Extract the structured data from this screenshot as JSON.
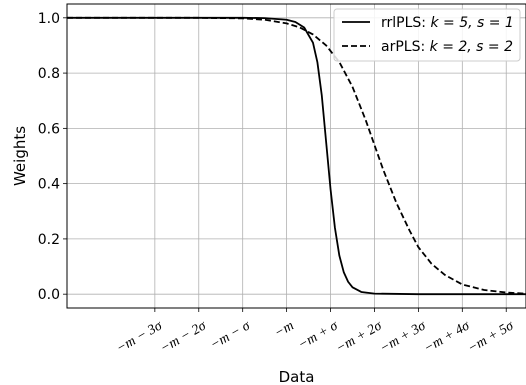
{
  "chart_data": {
    "type": "line",
    "xlabel": "Data",
    "ylabel": "Weights",
    "xlim": [
      -5,
      5.45
    ],
    "ylim": [
      -0.05,
      1.05
    ],
    "grid": true,
    "legend_position": "top-right",
    "x_ticks": [
      {
        "x": -3,
        "label": "−m − 3σ"
      },
      {
        "x": -2,
        "label": "−m − 2σ"
      },
      {
        "x": -1,
        "label": "−m − σ"
      },
      {
        "x": 0,
        "label": "−m"
      },
      {
        "x": 1,
        "label": "−m + σ"
      },
      {
        "x": 2,
        "label": "−m + 2σ"
      },
      {
        "x": 3,
        "label": "−m + 3σ"
      },
      {
        "x": 4,
        "label": "−m + 4σ"
      },
      {
        "x": 5,
        "label": "−m + 5σ"
      }
    ],
    "y_ticks": [
      {
        "y": 0.0,
        "label": "0.0"
      },
      {
        "y": 0.2,
        "label": "0.2"
      },
      {
        "y": 0.4,
        "label": "0.4"
      },
      {
        "y": 0.6,
        "label": "0.6"
      },
      {
        "y": 0.8,
        "label": "0.8"
      },
      {
        "y": 1.0,
        "label": "1.0"
      }
    ],
    "series": [
      {
        "name": "rrlPLS: k = 5, s = 1",
        "style": "solid",
        "color": "#000000",
        "points": [
          [
            -5,
            1.0
          ],
          [
            -2,
            1.0
          ],
          [
            -1,
            1.0
          ],
          [
            -0.5,
            0.999
          ],
          [
            0,
            0.993
          ],
          [
            0.2,
            0.985
          ],
          [
            0.4,
            0.965
          ],
          [
            0.6,
            0.91
          ],
          [
            0.7,
            0.84
          ],
          [
            0.8,
            0.72
          ],
          [
            0.9,
            0.55
          ],
          [
            1.0,
            0.38
          ],
          [
            1.1,
            0.24
          ],
          [
            1.2,
            0.14
          ],
          [
            1.3,
            0.08
          ],
          [
            1.4,
            0.045
          ],
          [
            1.5,
            0.025
          ],
          [
            1.7,
            0.008
          ],
          [
            2.0,
            0.002
          ],
          [
            3.0,
            0.0
          ],
          [
            5.45,
            0.0
          ]
        ]
      },
      {
        "name": "arPLS: k = 2, s = 2",
        "style": "dashed",
        "color": "#000000",
        "points": [
          [
            -5,
            1.0
          ],
          [
            -2,
            1.0
          ],
          [
            -1,
            0.998
          ],
          [
            -0.5,
            0.993
          ],
          [
            0,
            0.98
          ],
          [
            0.3,
            0.965
          ],
          [
            0.6,
            0.94
          ],
          [
            0.9,
            0.9
          ],
          [
            1.2,
            0.84
          ],
          [
            1.5,
            0.75
          ],
          [
            1.8,
            0.63
          ],
          [
            2.0,
            0.54
          ],
          [
            2.2,
            0.45
          ],
          [
            2.5,
            0.33
          ],
          [
            2.8,
            0.23
          ],
          [
            3.0,
            0.17
          ],
          [
            3.3,
            0.11
          ],
          [
            3.6,
            0.07
          ],
          [
            4.0,
            0.035
          ],
          [
            4.5,
            0.015
          ],
          [
            5.0,
            0.006
          ],
          [
            5.45,
            0.002
          ]
        ]
      }
    ],
    "legend": [
      {
        "prefix": "rrlPLS: ",
        "math": "k = 5, s = 1",
        "style": "solid"
      },
      {
        "prefix": "arPLS: ",
        "math": "k = 2, s = 2",
        "style": "dashed"
      }
    ]
  }
}
